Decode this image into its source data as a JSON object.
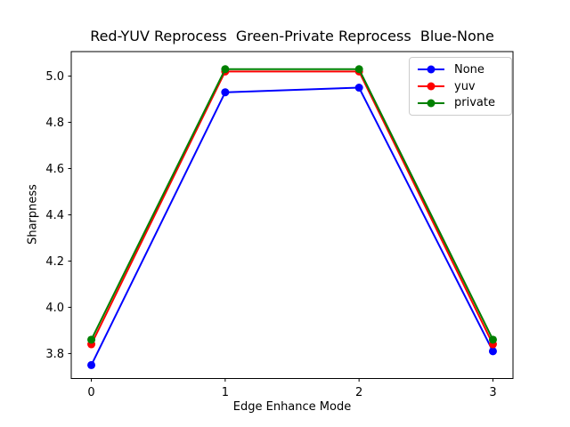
{
  "chart_data": {
    "type": "line",
    "title": "Red-YUV Reprocess  Green-Private Reprocess  Blue-None",
    "xlabel": "Edge Enhance Mode",
    "ylabel": "Sharpness",
    "x": [
      0,
      1,
      2,
      3
    ],
    "series": [
      {
        "name": "None",
        "color": "#0000ff",
        "values": [
          3.75,
          4.93,
          4.95,
          3.81
        ]
      },
      {
        "name": "yuv",
        "color": "#ff0000",
        "values": [
          3.84,
          5.02,
          5.02,
          3.84
        ]
      },
      {
        "name": "private",
        "color": "#008000",
        "values": [
          3.86,
          5.03,
          5.03,
          3.86
        ]
      }
    ],
    "xticks": [
      0,
      1,
      2,
      3
    ],
    "yticks": [
      3.8,
      4.0,
      4.2,
      4.4,
      4.6,
      4.8,
      5.0
    ],
    "xlim": [
      -0.15,
      3.15
    ],
    "ylim": [
      3.692,
      5.106
    ],
    "grid": false,
    "marker": "circle",
    "legend": {
      "position": "upper-right",
      "entries": [
        "None",
        "yuv",
        "private"
      ]
    }
  }
}
